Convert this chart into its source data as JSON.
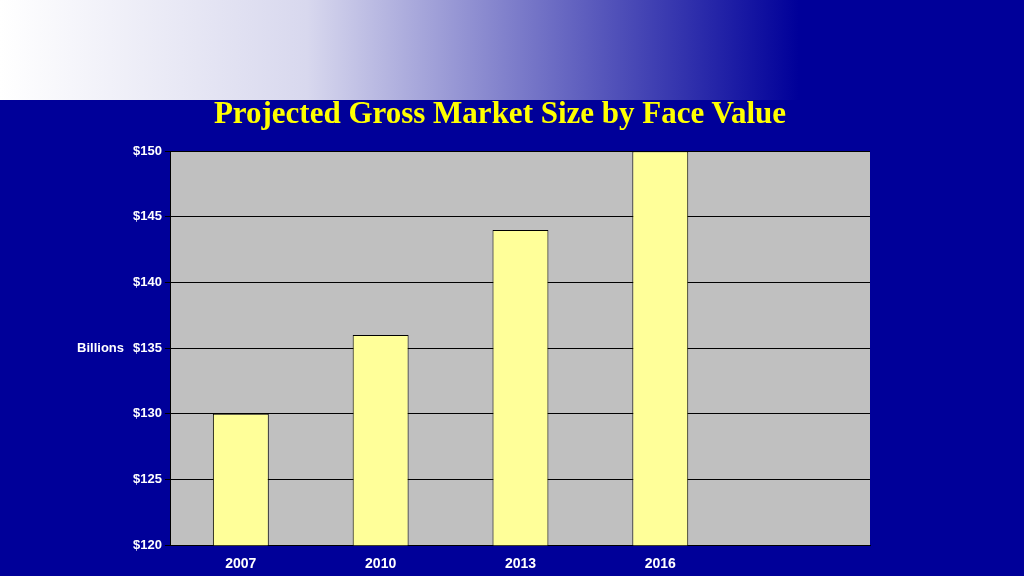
{
  "chart_data": {
    "type": "bar",
    "title": "Projected Gross Market Size by Face Value",
    "ylabel": "Billions",
    "categories": [
      "2007",
      "2010",
      "2013",
      "2016",
      null
    ],
    "values": [
      130,
      136,
      144,
      150,
      null
    ],
    "color": "#ffff99",
    "ylim": [
      120,
      150
    ],
    "yticks": [
      {
        "value": 120,
        "label": "$120"
      },
      {
        "value": 125,
        "label": "$125"
      },
      {
        "value": 130,
        "label": "$130"
      },
      {
        "value": 135,
        "label": "$135"
      },
      {
        "value": 140,
        "label": "$140"
      },
      {
        "value": 145,
        "label": "$145"
      },
      {
        "value": 150,
        "label": "$150"
      }
    ],
    "grid": "y"
  }
}
